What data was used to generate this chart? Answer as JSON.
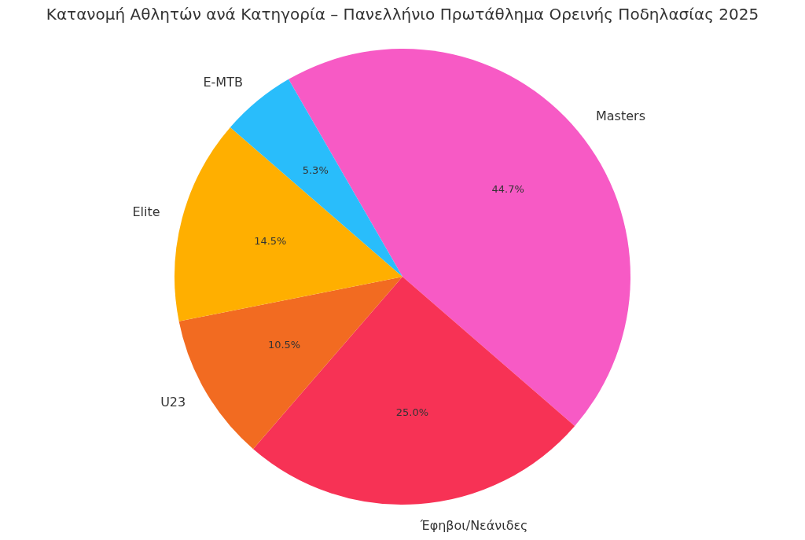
{
  "chart_data": {
    "type": "pie",
    "title": "Κατανομή Αθλητών ανά Κατηγορία – Πανελλήνιο Πρωτάθλημα Ορεινής Ποδηλασίας 2025",
    "categories": [
      "Masters",
      "Έφηβοι/Νεάνιδες",
      "U23",
      "Elite",
      "E-MTB"
    ],
    "values": [
      44.7,
      25.0,
      10.5,
      14.5,
      5.3
    ],
    "value_labels": [
      "44.7%",
      "25.0%",
      "10.5%",
      "14.5%",
      "5.3%"
    ],
    "colors": [
      "#f75ac5",
      "#f73255",
      "#f26b21",
      "#ffaf00",
      "#29bdfb"
    ],
    "legend": false
  }
}
